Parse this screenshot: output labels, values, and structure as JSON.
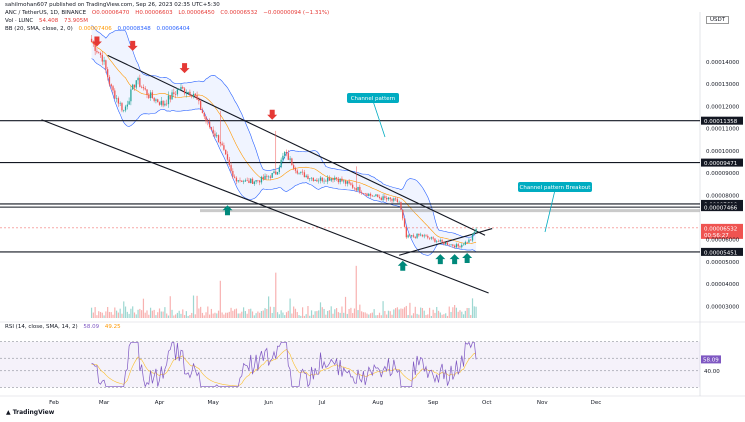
{
  "header": {
    "publisher_line": "sahilmohan607 published on TradingView.com, Sep 26, 2023 02:35 UTC+5:30",
    "symbol": "ANC / TetherUS, 1D, BINANCE",
    "ohlc": [
      "O0.00006470",
      "H0.00006603",
      "L0.00006450",
      "C0.00006532",
      "−0.00000094 (−1.31%)"
    ],
    "vol_line": "Vol · LUNC",
    "vol_values": [
      "54.408",
      "73.905M"
    ],
    "bb_line": "BB (20, SMA, close, 2, 0)",
    "bb_values": [
      "0.00007406",
      "0.00008348",
      "0.00006404"
    ],
    "rsi_label": "RSI (14, close, SMA, 14, 2)",
    "rsi_values": [
      "58.09",
      "49.25"
    ],
    "quote": "USDT"
  },
  "callouts": {
    "channel": "Channel pattern",
    "breakout": "Channel pattern Breakout"
  },
  "footer": {
    "logo": "TradingView"
  },
  "chart_data": {
    "type": "candlestick",
    "x_axis": {
      "labels": [
        "Feb",
        "Mar",
        "Apr",
        "May",
        "Jun",
        "Jul",
        "Aug",
        "Sep",
        "Oct",
        "Nov",
        "Dec"
      ]
    },
    "y_axis": {
      "labels": [
        "0.00014000",
        "0.00013000",
        "0.00012000",
        "0.00011000",
        "0.00010000",
        "0.00009000",
        "0.00008000",
        "0.00006000",
        "0.00005000",
        "0.00004000",
        "0.00003000"
      ],
      "range": [
        2.7e-05,
        0.000149
      ]
    },
    "horizontal_levels": [
      {
        "price": 0.00011358,
        "label": "0.00011358",
        "style": "solid"
      },
      {
        "price": 9.471e-05,
        "label": "0.00009471",
        "style": "solid"
      },
      {
        "price": 7.61e-05,
        "label": "0.00007610",
        "style": "solid"
      },
      {
        "price": 7.466e-05,
        "label": "0.00007466",
        "style": "solid"
      },
      {
        "price": 5.451e-05,
        "label": "0.00005451",
        "style": "solid"
      }
    ],
    "current_price": {
      "price": 6.532e-05,
      "label": "0.00006532",
      "countdown": "00:56:27"
    },
    "channel_lines": [
      {
        "from": [
          "Mar 3",
          0.000143
        ],
        "to": [
          "Sep 30",
          6.2e-05
        ]
      },
      {
        "from": [
          "Jan 25",
          0.000114
        ],
        "to": [
          "Oct 2",
          3.6e-05
        ]
      },
      {
        "from": [
          "Aug 13",
          5.3e-05
        ],
        "to": [
          "Oct 4",
          6.5e-05
        ]
      }
    ],
    "rsi": {
      "lines": [
        80,
        60,
        40,
        20
      ],
      "labels": [
        "60.00",
        "40.00"
      ],
      "last": 58.09
    },
    "series": {
      "anchors": [
        [
          "Feb 22",
          0.000149
        ],
        [
          "Feb 28",
          0.000142
        ],
        [
          "Mar 5",
          0.000128
        ],
        [
          "Mar 12",
          0.000118
        ],
        [
          "Mar 19",
          0.000132
        ],
        [
          "Mar 26",
          0.000125
        ],
        [
          "Apr 3",
          0.000121
        ],
        [
          "Apr 12",
          0.000128
        ],
        [
          "Apr 20",
          0.000126
        ],
        [
          "Apr 28",
          0.000112
        ],
        [
          "May 5",
          0.000104
        ],
        [
          "May 12",
          8.8e-05
        ],
        [
          "May 20",
          8.6e-05
        ],
        [
          "May 28",
          8.7e-05
        ],
        [
          "Jun 5",
          9e-05
        ],
        [
          "Jun 10",
          9.9e-05
        ],
        [
          "Jun 18",
          9e-05
        ],
        [
          "Jun 28",
          8.7e-05
        ],
        [
          "Jul 8",
          8.8e-05
        ],
        [
          "Jul 18",
          8.4e-05
        ],
        [
          "Jul 28",
          8e-05
        ],
        [
          "Aug 7",
          7.8e-05
        ],
        [
          "Aug 13",
          7.7e-05
        ],
        [
          "Aug 17",
          6.1e-05
        ],
        [
          "Aug 25",
          6.2e-05
        ],
        [
          "Sep 5",
          5.9e-05
        ],
        [
          "Sep 15",
          5.7e-05
        ],
        [
          "Sep 22",
          6e-05
        ],
        [
          "Sep 25",
          6.5e-05
        ]
      ],
      "spikes": [
        [
          "May 5",
          0.000118
        ],
        [
          "Jun 5",
          0.000109
        ],
        [
          "Jul 20",
          9.3e-05
        ]
      ]
    }
  }
}
